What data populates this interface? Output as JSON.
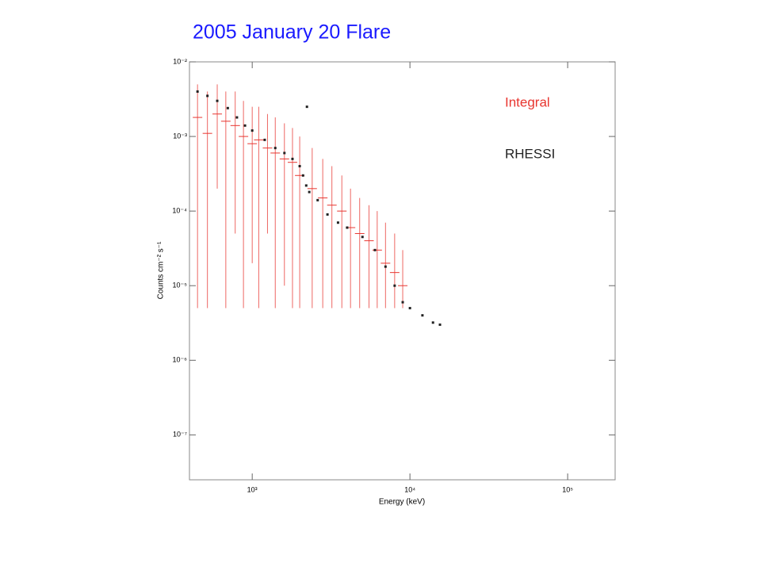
{
  "chart_data": {
    "type": "scatter",
    "title": "2005 January 20 Flare",
    "xlabel": "Energy (keV)",
    "ylabel": "Counts cm⁻² s⁻¹",
    "xscale": "log",
    "yscale": "log",
    "xlim": [
      400,
      200000
    ],
    "ylim": [
      2.5e-08,
      0.01
    ],
    "xticks": [
      {
        "value": 1000,
        "label": "10³"
      },
      {
        "value": 10000,
        "label": "10⁴"
      },
      {
        "value": 100000,
        "label": "10⁵"
      }
    ],
    "yticks": [
      {
        "value": 0.01,
        "label": "10⁻²"
      },
      {
        "value": 0.001,
        "label": "10⁻³"
      },
      {
        "value": 0.0001,
        "label": "10⁻⁴"
      },
      {
        "value": 1e-05,
        "label": "10⁻⁵"
      },
      {
        "value": 1e-06,
        "label": "10⁻⁶"
      },
      {
        "value": 1e-07,
        "label": "10⁻⁷"
      }
    ],
    "legend": "top-right",
    "series": [
      {
        "name": "Integral",
        "color": "#e8352f",
        "x": [
          450,
          520,
          600,
          680,
          780,
          880,
          1000,
          1100,
          1250,
          1400,
          1600,
          1800,
          2000,
          2400,
          2800,
          3200,
          3700,
          4200,
          4800,
          5500,
          6200,
          7000,
          8000,
          9000
        ],
        "values": [
          0.0018,
          0.0011,
          0.002,
          0.0016,
          0.0014,
          0.001,
          0.0008,
          0.0009,
          0.0007,
          0.0006,
          0.0005,
          0.00045,
          0.0003,
          0.0002,
          0.00015,
          0.00012,
          0.0001,
          6e-05,
          5e-05,
          4e-05,
          3e-05,
          2e-05,
          1.5e-05,
          1e-05
        ],
        "y_low": [
          5e-06,
          5e-06,
          0.0002,
          5e-06,
          5e-05,
          5e-06,
          2e-05,
          5e-06,
          5e-05,
          5e-06,
          1e-05,
          5e-06,
          5e-06,
          5e-06,
          5e-06,
          5e-06,
          5e-06,
          5e-06,
          5e-06,
          5e-06,
          5e-06,
          5e-06,
          5e-06,
          5e-06
        ],
        "y_high": [
          0.005,
          0.004,
          0.005,
          0.004,
          0.004,
          0.003,
          0.0025,
          0.0025,
          0.002,
          0.0018,
          0.0015,
          0.0013,
          0.001,
          0.0007,
          0.0005,
          0.0004,
          0.0003,
          0.0002,
          0.00015,
          0.00012,
          0.0001,
          7e-05,
          5e-05,
          3e-05
        ]
      },
      {
        "name": "RHESSI",
        "color": "#222222",
        "x": [
          450,
          520,
          600,
          700,
          800,
          900,
          1000,
          1200,
          1400,
          1600,
          1800,
          2000,
          2100,
          2200,
          2223,
          2300,
          2600,
          3000,
          3500,
          4000,
          5000,
          6000,
          7000,
          8000,
          9000,
          10000,
          12000,
          14000,
          15500
        ],
        "values": [
          0.004,
          0.0035,
          0.003,
          0.0024,
          0.0018,
          0.0014,
          0.0012,
          0.0009,
          0.0007,
          0.0006,
          0.0005,
          0.0004,
          0.0003,
          0.00022,
          0.0025,
          0.00018,
          0.00014,
          9e-05,
          7e-05,
          6e-05,
          4.5e-05,
          3e-05,
          1.8e-05,
          1e-05,
          6e-06,
          5e-06,
          4e-06,
          3.2e-06,
          3e-06
        ]
      }
    ]
  }
}
